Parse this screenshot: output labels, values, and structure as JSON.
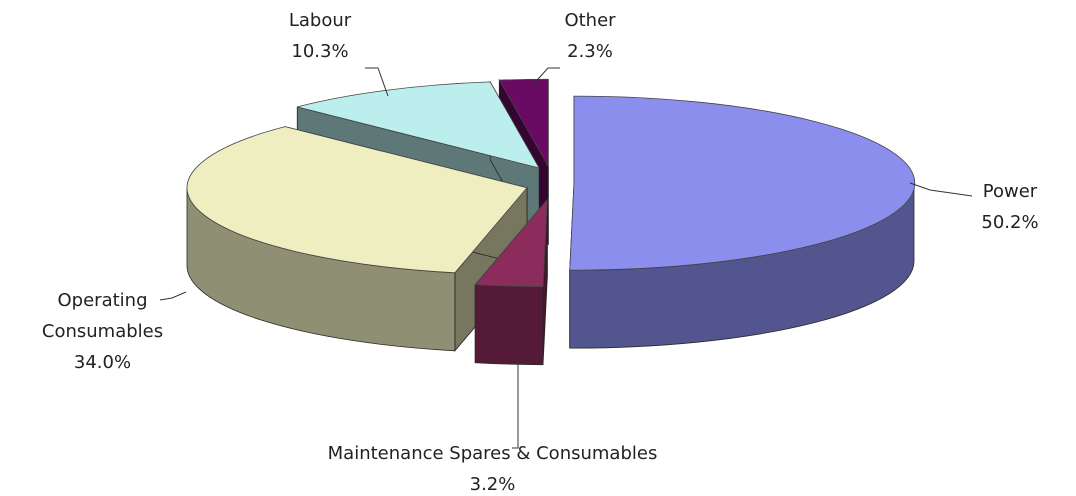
{
  "chart_data": {
    "type": "pie",
    "categories": [
      "Power",
      "Maintenance Spares & Consumables",
      "Operating Consumables",
      "Labour",
      "Other"
    ],
    "values": [
      50.2,
      3.2,
      34.0,
      10.3,
      2.3
    ],
    "value_labels": [
      "50.2%",
      "3.2%",
      "34.0%",
      "10.3%",
      "2.3%"
    ],
    "colors": [
      "#8b8eed",
      "#8c2c5c",
      "#eeeec0",
      "#bdeeee",
      "#6a0a62"
    ]
  }
}
